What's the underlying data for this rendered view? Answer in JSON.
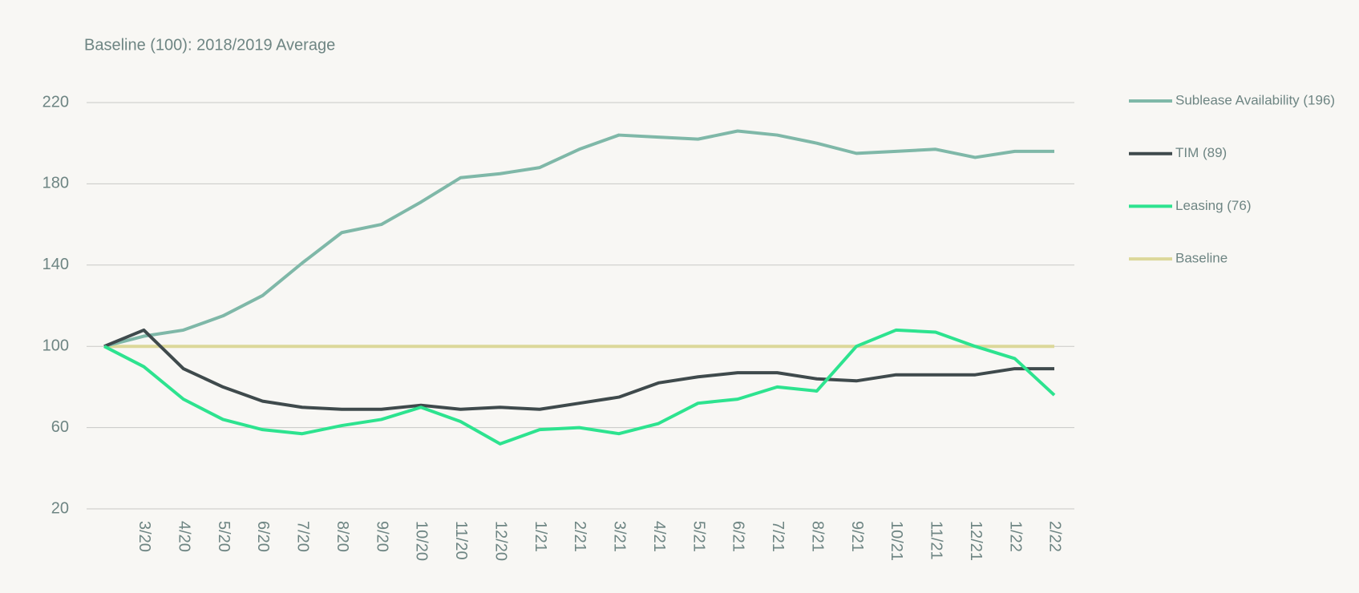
{
  "chart_data": {
    "type": "line",
    "subtitle": "Baseline (100): 2018/2019 Average",
    "categories": [
      null,
      "3/20",
      "4/20",
      "5/20",
      "6/20",
      "7/20",
      "8/20",
      "9/20",
      "10/20",
      "11/20",
      "12/20",
      "1/21",
      "2/21",
      "3/21",
      "4/21",
      "5/21",
      "6/21",
      "7/21",
      "8/21",
      "9/21",
      "10/21",
      "11/21",
      "12/21",
      "1/22",
      "2/22"
    ],
    "series": [
      {
        "name": "Sublease Availability (196)",
        "color": "#7fb8a8",
        "values": [
          100,
          105,
          108,
          115,
          125,
          141,
          156,
          160,
          171,
          183,
          185,
          188,
          197,
          204,
          203,
          202,
          206,
          204,
          200,
          195,
          196,
          197,
          193,
          196,
          196
        ]
      },
      {
        "name": "TIM (89)",
        "color": "#3f4a4c",
        "values": [
          100,
          108,
          89,
          80,
          73,
          70,
          69,
          69,
          71,
          69,
          70,
          69,
          72,
          75,
          82,
          85,
          87,
          87,
          84,
          83,
          86,
          86,
          86,
          89,
          89
        ]
      },
      {
        "name": "Leasing (76)",
        "color": "#2de38f",
        "values": [
          100,
          90,
          74,
          64,
          59,
          57,
          61,
          64,
          70,
          63,
          52,
          59,
          60,
          57,
          62,
          72,
          74,
          80,
          78,
          100,
          108,
          107,
          100,
          94,
          76
        ]
      },
      {
        "name": "Baseline",
        "color": "#dcd89a",
        "values": [
          100,
          100,
          100,
          100,
          100,
          100,
          100,
          100,
          100,
          100,
          100,
          100,
          100,
          100,
          100,
          100,
          100,
          100,
          100,
          100,
          100,
          100,
          100,
          100,
          100
        ]
      }
    ],
    "ylim": [
      20,
      220
    ],
    "yticks": [
      20,
      60,
      100,
      140,
      180,
      220
    ],
    "grid": true
  }
}
